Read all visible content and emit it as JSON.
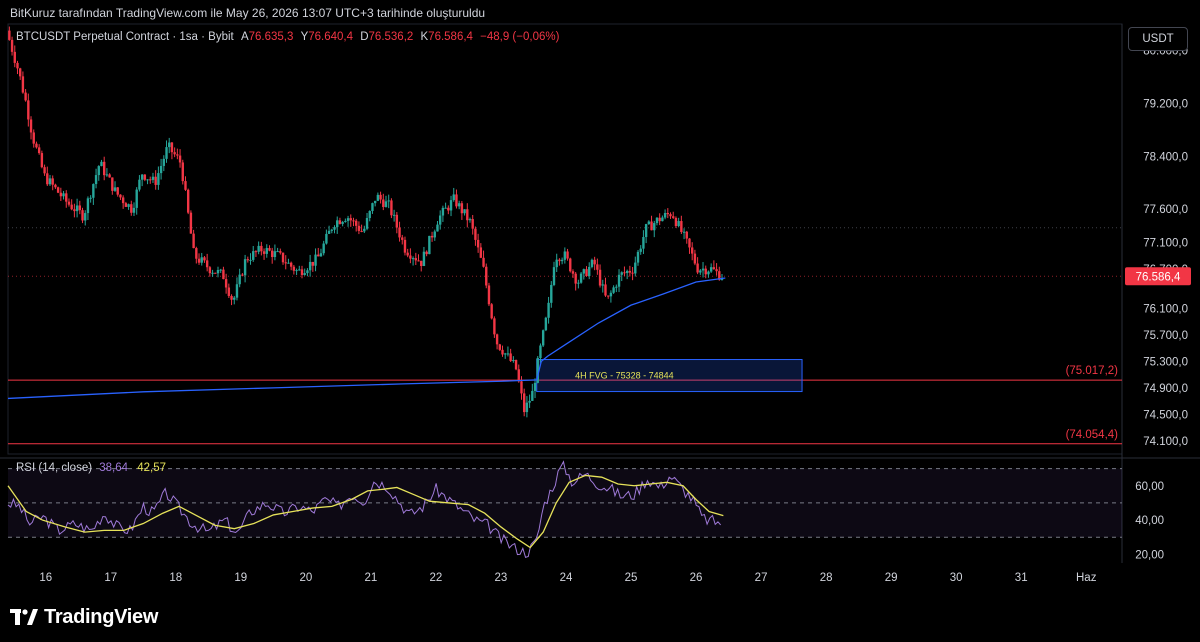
{
  "header": {
    "attribution": "BitKuruz tarafından TradingView.com ile May 26, 2026 13:07 UTC+3 tarihinde oluşturuldu"
  },
  "legend": {
    "symbol": "BTCUSDT Perpetual Contract · 1sa · Bybit",
    "open_label": "A",
    "open": "76.635,3",
    "high_label": "Y",
    "high": "76.640,4",
    "low_label": "D",
    "low": "76.536,2",
    "close_label": "K",
    "close": "76.586,4",
    "change": "−48,9 (−0,06%)"
  },
  "currency_button": "USDT",
  "rsi_legend": {
    "title": "RSI (14, close)",
    "rsi_value": "38,64",
    "ma_value": "42,57"
  },
  "brand": "TradingView",
  "colors": {
    "up": "#26a69a",
    "down": "#f23645",
    "vwap": "#2962ff",
    "rsi": "#9f7ad8",
    "rsi_ma": "#e6e25a",
    "level": "#f23645",
    "fvg_border": "#2962ff"
  },
  "chart_data": [
    {
      "type": "candlestick",
      "ylim": [
        73900,
        80400
      ],
      "y_ticks": [
        "80.000,0",
        "79.200,0",
        "78.400,0",
        "77.600,0",
        "77.100,0",
        "76.700,0",
        "76.100,0",
        "75.700,0",
        "75.300,0",
        "74.900,0",
        "74.500,0",
        "74.100,0"
      ],
      "y_tick_values": [
        80000,
        79200,
        78400,
        77600,
        77100,
        76700,
        76100,
        75700,
        75300,
        74900,
        74500,
        74100
      ],
      "x_ticks": [
        "16",
        "17",
        "18",
        "19",
        "20",
        "21",
        "22",
        "23",
        "24",
        "25",
        "26",
        "27",
        "28",
        "29",
        "30",
        "31",
        "Haz"
      ],
      "x_tick_values": [
        16,
        17,
        18,
        19,
        20,
        21,
        22,
        23,
        24,
        25,
        26,
        27,
        28,
        29,
        30,
        31,
        32
      ],
      "xlim": [
        15.42,
        32.55
      ],
      "last_price": "76.586,4",
      "last_value": 76586.4,
      "horizontal_levels": [
        {
          "label": "(75.017,2)",
          "value": 75017.2
        },
        {
          "label": "(74.054,4)",
          "value": 74054.4
        }
      ],
      "zone": {
        "label": "4H FVG - 75328 - 74844",
        "top": 75328,
        "bottom": 74844,
        "x_start": 23.55,
        "x_end": 27.63
      },
      "key_points": [
        [
          15.42,
          80300
        ],
        [
          15.6,
          79700
        ],
        [
          15.72,
          79200
        ],
        [
          15.82,
          78700
        ],
        [
          16.0,
          78100
        ],
        [
          16.35,
          77700
        ],
        [
          16.6,
          77500
        ],
        [
          16.85,
          78300
        ],
        [
          17.1,
          77850
        ],
        [
          17.35,
          77600
        ],
        [
          17.5,
          78150
        ],
        [
          17.7,
          78000
        ],
        [
          17.9,
          78550
        ],
        [
          18.1,
          78300
        ],
        [
          18.3,
          76900
        ],
        [
          18.55,
          76700
        ],
        [
          18.75,
          76600
        ],
        [
          18.9,
          76200
        ],
        [
          19.1,
          76850
        ],
        [
          19.35,
          77000
        ],
        [
          19.6,
          76900
        ],
        [
          19.9,
          76650
        ],
        [
          20.2,
          76850
        ],
        [
          20.45,
          77400
        ],
        [
          20.65,
          77500
        ],
        [
          20.9,
          77250
        ],
        [
          21.1,
          77800
        ],
        [
          21.3,
          77650
        ],
        [
          21.55,
          77000
        ],
        [
          21.8,
          76800
        ],
        [
          22.05,
          77450
        ],
        [
          22.3,
          77750
        ],
        [
          22.55,
          77400
        ],
        [
          22.75,
          76700
        ],
        [
          22.95,
          75600
        ],
        [
          23.1,
          75400
        ],
        [
          23.25,
          75200
        ],
        [
          23.38,
          74550
        ],
        [
          23.5,
          74800
        ],
        [
          23.62,
          75450
        ],
        [
          23.75,
          76100
        ],
        [
          23.85,
          76900
        ],
        [
          24.0,
          76900
        ],
        [
          24.2,
          76500
        ],
        [
          24.45,
          76800
        ],
        [
          24.65,
          76200
        ],
        [
          24.85,
          76600
        ],
        [
          25.05,
          76700
        ],
        [
          25.25,
          77300
        ],
        [
          25.45,
          77450
        ],
        [
          25.65,
          77550
        ],
        [
          25.85,
          77150
        ],
        [
          26.05,
          76700
        ],
        [
          26.25,
          76700
        ],
        [
          26.42,
          76586
        ]
      ],
      "vwap_points": [
        [
          15.42,
          74740
        ],
        [
          17.5,
          74840
        ],
        [
          19.5,
          74900
        ],
        [
          21.5,
          74960
        ],
        [
          23.0,
          75000
        ],
        [
          23.55,
          75020
        ],
        [
          23.62,
          75300
        ],
        [
          23.72,
          75380
        ],
        [
          24.0,
          75560
        ],
        [
          24.5,
          75880
        ],
        [
          25.0,
          76150
        ],
        [
          25.5,
          76320
        ],
        [
          26.0,
          76500
        ],
        [
          26.45,
          76560
        ]
      ]
    },
    {
      "type": "line",
      "title": "RSI (14, close)",
      "ylim": [
        15,
        75
      ],
      "y_ticks": [
        "60,00",
        "40,00",
        "20,00"
      ],
      "y_tick_values": [
        60,
        40,
        20
      ],
      "bands": {
        "upper": 70,
        "middle": 50,
        "lower": 30
      },
      "series": [
        {
          "values": [
            [
              15.42,
              50
            ],
            [
              15.6,
              48
            ],
            [
              15.75,
              38
            ],
            [
              15.95,
              42
            ],
            [
              16.2,
              34
            ],
            [
              16.45,
              38
            ],
            [
              16.7,
              34
            ],
            [
              16.9,
              44
            ],
            [
              17.1,
              36
            ],
            [
              17.3,
              34
            ],
            [
              17.5,
              48
            ],
            [
              17.65,
              44
            ],
            [
              17.85,
              56
            ],
            [
              18.05,
              47
            ],
            [
              18.25,
              38
            ],
            [
              18.5,
              33
            ],
            [
              18.75,
              40
            ],
            [
              18.95,
              32
            ],
            [
              19.15,
              45
            ],
            [
              19.4,
              50
            ],
            [
              19.65,
              44
            ],
            [
              19.9,
              48
            ],
            [
              20.1,
              45
            ],
            [
              20.3,
              52
            ],
            [
              20.5,
              48
            ],
            [
              20.7,
              55
            ],
            [
              20.9,
              51
            ],
            [
              21.05,
              63
            ],
            [
              21.25,
              60
            ],
            [
              21.45,
              50
            ],
            [
              21.6,
              43
            ],
            [
              21.8,
              48
            ],
            [
              22.0,
              58
            ],
            [
              22.2,
              52
            ],
            [
              22.4,
              46
            ],
            [
              22.6,
              40
            ],
            [
              22.8,
              37
            ],
            [
              23.0,
              29
            ],
            [
              23.2,
              24
            ],
            [
              23.4,
              21
            ],
            [
              23.55,
              28
            ],
            [
              23.65,
              48
            ],
            [
              23.8,
              60
            ],
            [
              23.95,
              73
            ],
            [
              24.1,
              62
            ],
            [
              24.3,
              67
            ],
            [
              24.5,
              61
            ],
            [
              24.7,
              58
            ],
            [
              24.85,
              54
            ],
            [
              25.05,
              55
            ],
            [
              25.25,
              64
            ],
            [
              25.45,
              59
            ],
            [
              25.6,
              66
            ],
            [
              25.8,
              58
            ],
            [
              25.95,
              52
            ],
            [
              26.1,
              41
            ],
            [
              26.3,
              39
            ],
            [
              26.42,
              38.6
            ]
          ]
        },
        {
          "values": [
            [
              15.42,
              60
            ],
            [
              15.7,
              45
            ],
            [
              15.95,
              40
            ],
            [
              16.3,
              36
            ],
            [
              16.6,
              33
            ],
            [
              16.9,
              34
            ],
            [
              17.2,
              34
            ],
            [
              17.5,
              38
            ],
            [
              17.8,
              44
            ],
            [
              18.05,
              48
            ],
            [
              18.3,
              43
            ],
            [
              18.6,
              37
            ],
            [
              18.9,
              35
            ],
            [
              19.2,
              38
            ],
            [
              19.5,
              43
            ],
            [
              19.8,
              45
            ],
            [
              20.1,
              47
            ],
            [
              20.4,
              48
            ],
            [
              20.7,
              52
            ],
            [
              20.95,
              57
            ],
            [
              21.2,
              58
            ],
            [
              21.4,
              59
            ],
            [
              21.65,
              55
            ],
            [
              21.9,
              51
            ],
            [
              22.2,
              50
            ],
            [
              22.5,
              49
            ],
            [
              22.75,
              44
            ],
            [
              23.0,
              36
            ],
            [
              23.25,
              29
            ],
            [
              23.45,
              24
            ],
            [
              23.65,
              33
            ],
            [
              23.85,
              50
            ],
            [
              24.05,
              62
            ],
            [
              24.3,
              66
            ],
            [
              24.55,
              65
            ],
            [
              24.8,
              61
            ],
            [
              25.05,
              60
            ],
            [
              25.3,
              61
            ],
            [
              25.55,
              62
            ],
            [
              25.8,
              60
            ],
            [
              26.0,
              52
            ],
            [
              26.2,
              45
            ],
            [
              26.42,
              42.6
            ]
          ]
        }
      ]
    }
  ]
}
